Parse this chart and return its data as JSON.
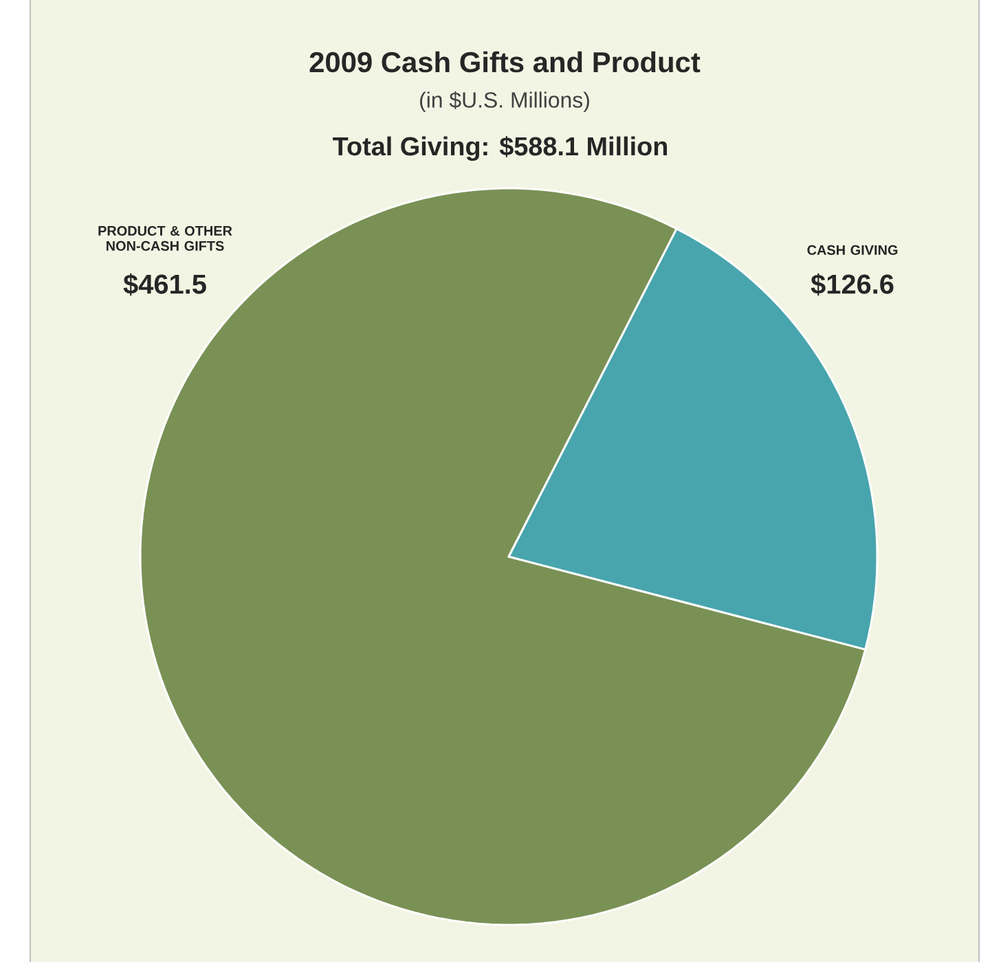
{
  "chart_data": {
    "type": "pie",
    "title": "2009 Cash Gifts and Product",
    "subtitle": "(in $U.S. Millions)",
    "annotations": [
      "Total Giving: $588.1 Million"
    ],
    "categories": [
      "PRODUCT & OTHER NON-CASH GIFTS",
      "CASH GIVING"
    ],
    "values": [
      461.5,
      126.6
    ],
    "value_labels": [
      "$461.5",
      "$126.6"
    ],
    "colors": [
      "#7a9155",
      "#48a5ad"
    ]
  }
}
